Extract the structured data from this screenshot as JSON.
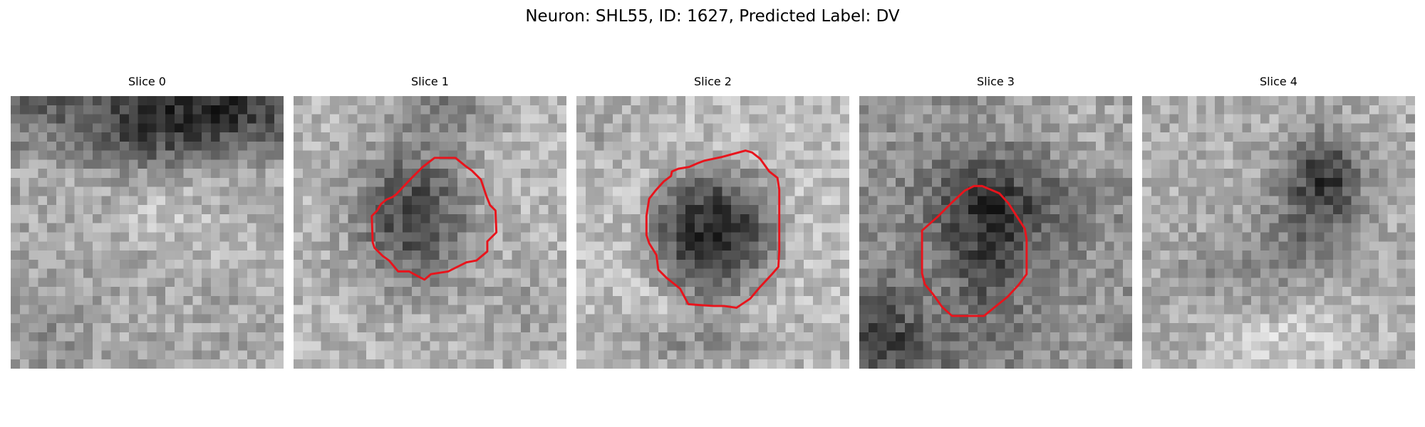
{
  "figure": {
    "title": "Neuron: SHL55, ID: 1627, Predicted Label: DV"
  },
  "slices": [
    {
      "title": "Slice 0",
      "has_roi_outline": false
    },
    {
      "title": "Slice 1",
      "has_roi_outline": true
    },
    {
      "title": "Slice 2",
      "has_roi_outline": true
    },
    {
      "title": "Slice 3",
      "has_roi_outline": true
    },
    {
      "title": "Slice 4",
      "has_roi_outline": false
    }
  ],
  "colors": {
    "roi_outline": "#e8141c",
    "background": "#ffffff"
  },
  "colormap": "gray"
}
